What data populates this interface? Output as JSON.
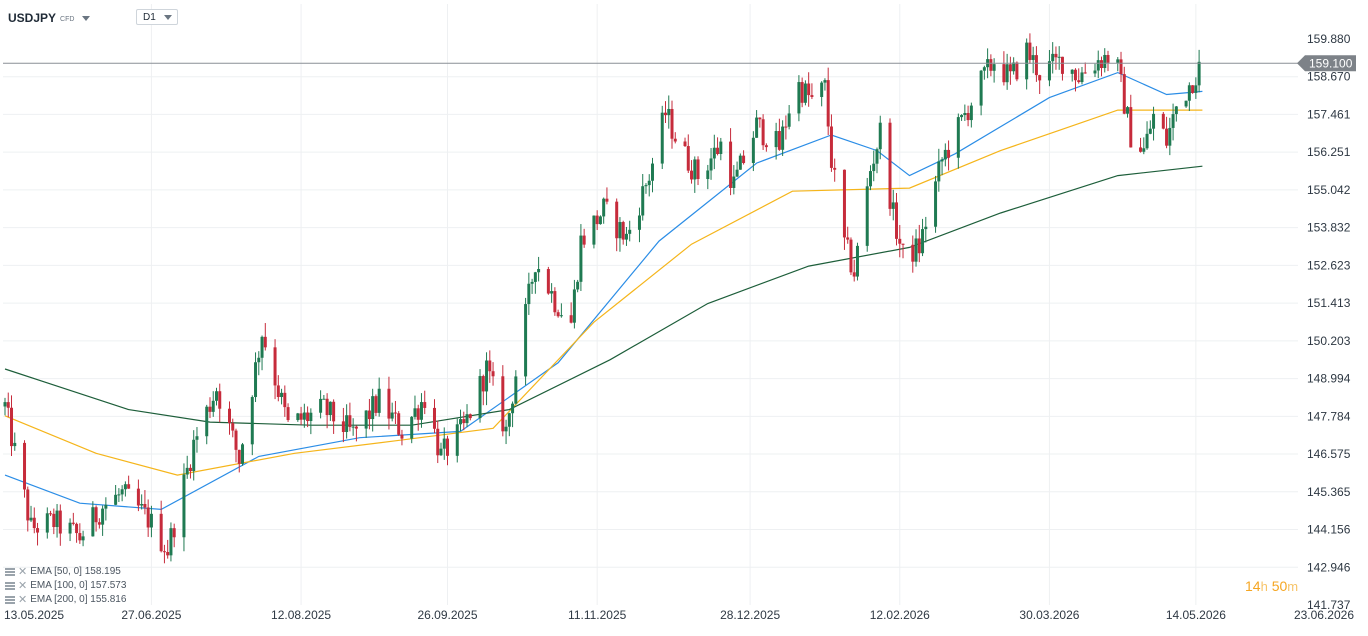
{
  "header": {
    "symbol": "USDJPY",
    "instrument_type": "CFD",
    "timeframe": "D1"
  },
  "countdown": {
    "hours": "14",
    "hours_unit": "h",
    "minutes": "50",
    "minutes_unit": "m"
  },
  "legend": [
    {
      "label": "EMA [50, 0] 158.195",
      "color": "#2b8de6"
    },
    {
      "label": "EMA [100, 0] 157.573",
      "color": "#f5b51b"
    },
    {
      "label": "EMA [200, 0] 155.816",
      "color": "#1d5e3a"
    }
  ],
  "colors": {
    "up": "#1f7a52",
    "down": "#c62b3b",
    "grid": "#eef0f2",
    "price_line": "#8a8f96",
    "price_badge": "#7d8288"
  },
  "chart_data": {
    "type": "candlestick",
    "ylim": [
      141.737,
      161.0
    ],
    "y_ticks": [
      "159.880",
      "158.670",
      "157.461",
      "156.251",
      "155.042",
      "153.832",
      "152.623",
      "151.413",
      "150.203",
      "148.994",
      "147.784",
      "146.575",
      "145.365",
      "144.156",
      "142.946",
      "141.737"
    ],
    "x_ticks": [
      "13.05.2025",
      "27.06.2025",
      "12.08.2025",
      "26.09.2025",
      "11.11.2025",
      "28.12.2025",
      "12.02.2026",
      "30.03.2026",
      "14.05.2026",
      "23.06.2026"
    ],
    "current_price": "159.100",
    "keypoints": [
      [
        "2025-05-13",
        148.1
      ],
      [
        "2025-05-21",
        144.2
      ],
      [
        "2025-05-28",
        144.4
      ],
      [
        "2025-06-05",
        143.9
      ],
      [
        "2025-06-12",
        144.9
      ],
      [
        "2025-06-18",
        145.3
      ],
      [
        "2025-06-26",
        144.5
      ],
      [
        "2025-07-02",
        143.5
      ],
      [
        "2025-07-10",
        146.9
      ],
      [
        "2025-07-17",
        148.7
      ],
      [
        "2025-07-24",
        146.4
      ],
      [
        "2025-07-31",
        150.5
      ],
      [
        "2025-08-08",
        147.5
      ],
      [
        "2025-08-19",
        148.0
      ],
      [
        "2025-08-28",
        147.2
      ],
      [
        "2025-09-05",
        148.3
      ],
      [
        "2025-09-12",
        147.3
      ],
      [
        "2025-09-19",
        148.4
      ],
      [
        "2025-09-24",
        146.5
      ],
      [
        "2025-10-01",
        147.4
      ],
      [
        "2025-10-08",
        149.3
      ],
      [
        "2025-10-14",
        147.3
      ],
      [
        "2025-10-20",
        151.0
      ],
      [
        "2025-10-23",
        152.8
      ],
      [
        "2025-10-29",
        151.5
      ],
      [
        "2025-11-03",
        150.8
      ],
      [
        "2025-11-06",
        153.4
      ],
      [
        "2025-11-13",
        154.4
      ],
      [
        "2025-11-20",
        153.5
      ],
      [
        "2025-11-27",
        155.5
      ],
      [
        "2025-12-02",
        157.5
      ],
      [
        "2025-12-07",
        156.3
      ],
      [
        "2025-12-12",
        155.5
      ],
      [
        "2025-12-19",
        156.5
      ],
      [
        "2025-12-23",
        155.2
      ],
      [
        "2025-12-30",
        157.1
      ],
      [
        "2026-01-06",
        156.4
      ],
      [
        "2026-01-11",
        158.5
      ],
      [
        "2026-01-16",
        157.9
      ],
      [
        "2026-01-20",
        158.3
      ],
      [
        "2026-01-22",
        156.0
      ],
      [
        "2026-01-26",
        153.3
      ],
      [
        "2026-01-29",
        152.4
      ],
      [
        "2026-02-03",
        155.7
      ],
      [
        "2026-02-06",
        156.9
      ],
      [
        "2026-02-10",
        154.2
      ],
      [
        "2026-02-13",
        152.9
      ],
      [
        "2026-02-18",
        153.2
      ],
      [
        "2026-02-25",
        156.0
      ],
      [
        "2026-03-02",
        157.0
      ],
      [
        "2026-03-08",
        158.3
      ],
      [
        "2026-03-13",
        159.2
      ],
      [
        "2026-03-18",
        158.6
      ],
      [
        "2026-03-23",
        159.5
      ],
      [
        "2026-03-27",
        158.8
      ],
      [
        "2026-04-03",
        159.2
      ],
      [
        "2026-04-08",
        158.7
      ],
      [
        "2026-04-14",
        159.2
      ],
      [
        "2026-04-19",
        159.4
      ],
      [
        "2026-04-24",
        156.8
      ],
      [
        "2026-04-28",
        156.3
      ],
      [
        "2026-05-01",
        157.4
      ],
      [
        "2026-05-05",
        156.6
      ],
      [
        "2026-05-08",
        157.7
      ],
      [
        "2026-05-13",
        158.6
      ],
      [
        "2026-05-16",
        159.1
      ]
    ],
    "ema": {
      "EMA 50": [
        [
          "2025-05-13",
          145.9
        ],
        [
          "2025-06-05",
          145.0
        ],
        [
          "2025-06-30",
          144.8
        ],
        [
          "2025-07-30",
          146.5
        ],
        [
          "2025-08-30",
          147.1
        ],
        [
          "2025-09-30",
          147.3
        ],
        [
          "2025-10-30",
          149.5
        ],
        [
          "2025-11-30",
          153.4
        ],
        [
          "2025-12-30",
          155.9
        ],
        [
          "2026-01-22",
          156.8
        ],
        [
          "2026-02-05",
          156.3
        ],
        [
          "2026-02-15",
          155.5
        ],
        [
          "2026-03-01",
          156.2
        ],
        [
          "2026-03-30",
          158.0
        ],
        [
          "2026-04-20",
          158.8
        ],
        [
          "2026-05-05",
          158.1
        ],
        [
          "2026-05-16",
          158.2
        ]
      ],
      "EMA 100": [
        [
          "2025-05-13",
          147.8
        ],
        [
          "2025-06-10",
          146.6
        ],
        [
          "2025-07-05",
          145.9
        ],
        [
          "2025-08-10",
          146.6
        ],
        [
          "2025-09-10",
          147.0
        ],
        [
          "2025-10-10",
          147.4
        ],
        [
          "2025-11-10",
          150.8
        ],
        [
          "2025-12-10",
          153.3
        ],
        [
          "2026-01-10",
          155.0
        ],
        [
          "2026-02-15",
          155.1
        ],
        [
          "2026-03-15",
          156.3
        ],
        [
          "2026-04-20",
          157.6
        ],
        [
          "2026-05-16",
          157.6
        ]
      ],
      "EMA 200": [
        [
          "2025-05-13",
          149.3
        ],
        [
          "2025-06-20",
          148.0
        ],
        [
          "2025-07-15",
          147.6
        ],
        [
          "2025-08-15",
          147.5
        ],
        [
          "2025-09-15",
          147.5
        ],
        [
          "2025-10-15",
          148.0
        ],
        [
          "2025-11-15",
          149.6
        ],
        [
          "2025-12-15",
          151.4
        ],
        [
          "2026-01-15",
          152.6
        ],
        [
          "2026-02-15",
          153.2
        ],
        [
          "2026-03-15",
          154.3
        ],
        [
          "2026-04-20",
          155.5
        ],
        [
          "2026-05-16",
          155.8
        ]
      ]
    }
  }
}
